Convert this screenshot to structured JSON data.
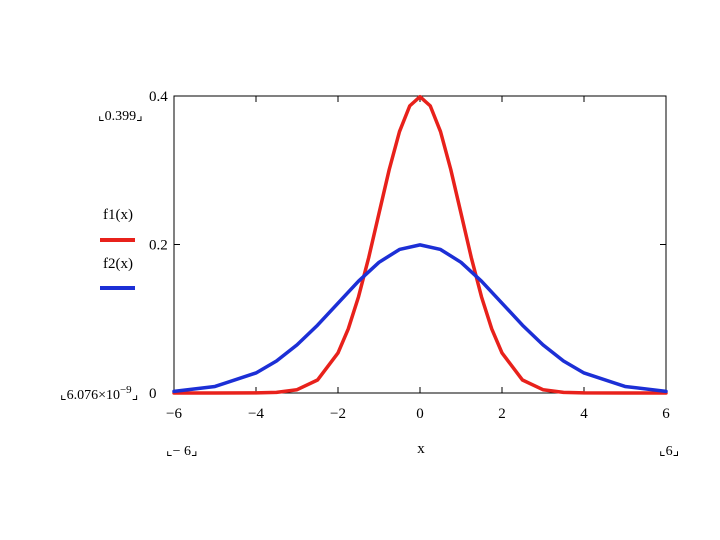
{
  "chart_data": {
    "type": "line",
    "xlabel": "x",
    "xlim": [
      -6,
      6
    ],
    "ylim": [
      0,
      0.4
    ],
    "x_ticks": [
      -6,
      -4,
      -2,
      0,
      2,
      4,
      6
    ],
    "x_tick_labels": [
      "−6",
      "−4",
      "−2",
      "0",
      "2",
      "4",
      "6"
    ],
    "y_ticks": [
      0,
      0.2,
      0.4
    ],
    "y_tick_labels": [
      "0",
      "0.2",
      "0.4"
    ],
    "x_range_labels": {
      "min": "− 6",
      "max": "6"
    },
    "y_range_labels": {
      "max": "0.399",
      "min_mantissa": "6.076×10",
      "min_exponent": "−9"
    },
    "grid": false,
    "legend_position": "left",
    "series": [
      {
        "name": "f1(x)",
        "color": "#e8211b",
        "x": [
          -6,
          -5,
          -4,
          -3.5,
          -3,
          -2.5,
          -2,
          -1.75,
          -1.5,
          -1.25,
          -1,
          -0.75,
          -0.5,
          -0.25,
          0,
          0.25,
          0.5,
          0.75,
          1,
          1.25,
          1.5,
          1.75,
          2,
          2.5,
          3,
          3.5,
          4,
          5,
          6
        ],
        "y": [
          6e-09,
          1.5e-06,
          0.000134,
          0.00087,
          0.00443,
          0.0175,
          0.054,
          0.0863,
          0.1295,
          0.1826,
          0.242,
          0.3011,
          0.3521,
          0.3867,
          0.399,
          0.3867,
          0.3521,
          0.3011,
          0.242,
          0.1826,
          0.1295,
          0.0863,
          0.054,
          0.0175,
          0.00443,
          0.00087,
          0.000134,
          1.5e-06,
          6e-09
        ]
      },
      {
        "name": "f2(x)",
        "color": "#1c2fd6",
        "x": [
          -6,
          -5,
          -4,
          -3.5,
          -3,
          -2.5,
          -2,
          -1.5,
          -1,
          -0.5,
          0,
          0.5,
          1,
          1.5,
          2,
          2.5,
          3,
          3.5,
          4,
          5,
          6
        ],
        "y": [
          0.0022,
          0.0088,
          0.027,
          0.0431,
          0.0648,
          0.0913,
          0.121,
          0.1506,
          0.176,
          0.1933,
          0.1995,
          0.1933,
          0.176,
          0.1506,
          0.121,
          0.0913,
          0.0648,
          0.0431,
          0.027,
          0.0088,
          0.0022
        ]
      }
    ]
  }
}
